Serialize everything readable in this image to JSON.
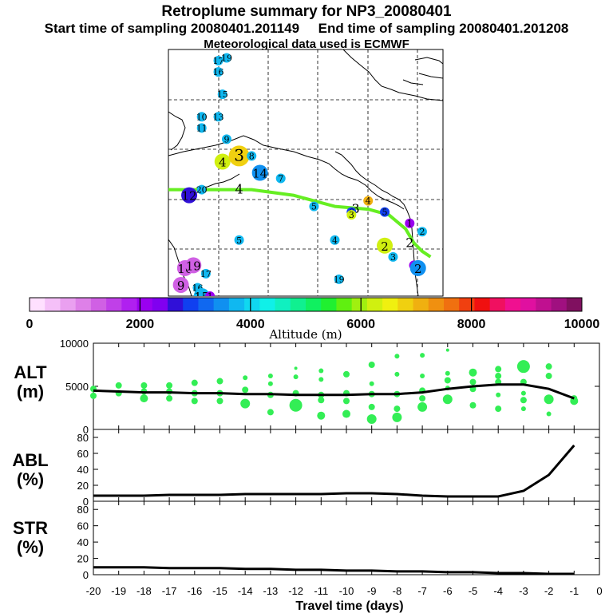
{
  "title": {
    "line1": "Retroplume summary for NP3_20080401",
    "line2": "Start time of sampling 20080401.201149     End time of sampling 20080401.201208",
    "line3": "Meteorological data used is ECMWF"
  },
  "colorbar": {
    "label": "Altitude (m)",
    "ticks": [
      "0",
      "2000",
      "4000",
      "6000",
      "8000",
      "10000"
    ],
    "colors": [
      "#ffe0ff",
      "#f5c0f8",
      "#eaa0f0",
      "#de80e8",
      "#d060e4",
      "#c040e8",
      "#b020f0",
      "#9a00f0",
      "#8000f0",
      "#3010d8",
      "#1040f0",
      "#1068f0",
      "#1090f0",
      "#10b8f0",
      "#10d8f0",
      "#10f0e8",
      "#10f0c0",
      "#10f090",
      "#10f060",
      "#20f030",
      "#60f010",
      "#a0f010",
      "#d0f010",
      "#f0f010",
      "#f0d010",
      "#f0b010",
      "#f09010",
      "#f07010",
      "#f04010",
      "#f01010",
      "#f01060",
      "#f01090",
      "#e010a0",
      "#c01090",
      "#a01080",
      "#801060"
    ]
  },
  "map": {
    "points": [
      {
        "label": "17",
        "alt": 3800,
        "size": "s",
        "lon": -168,
        "lat": 80
      },
      {
        "label": "19",
        "alt": 3800,
        "size": "s",
        "lon": -166,
        "lat": 80.5
      },
      {
        "label": "16",
        "alt": 3800,
        "size": "s",
        "lon": -168,
        "lat": 78
      },
      {
        "label": "15",
        "alt": 3800,
        "size": "s",
        "lon": -167,
        "lat": 74
      },
      {
        "label": "10",
        "alt": 3800,
        "size": "s",
        "lon": -172,
        "lat": 70
      },
      {
        "label": "13",
        "alt": 3800,
        "size": "s",
        "lon": -168,
        "lat": 70
      },
      {
        "label": "11",
        "alt": 3800,
        "size": "s",
        "lon": -172,
        "lat": 68
      },
      {
        "label": "9",
        "alt": 3800,
        "size": "s",
        "lon": -166,
        "lat": 66
      },
      {
        "label": "4",
        "alt": 6200,
        "size": "m",
        "lon": -167,
        "lat": 62
      },
      {
        "label": "3",
        "alt": 6800,
        "size": "l",
        "lon": -163,
        "lat": 63
      },
      {
        "label": "8",
        "alt": 3800,
        "size": "s",
        "lon": -160,
        "lat": 63
      },
      {
        "label": "14",
        "alt": 3600,
        "size": "m",
        "lon": -158,
        "lat": 60
      },
      {
        "label": "7",
        "alt": 3800,
        "size": "s",
        "lon": -153,
        "lat": 59
      },
      {
        "label": "12",
        "alt": 2700,
        "size": "m",
        "lon": -175,
        "lat": 56
      },
      {
        "label": "20",
        "alt": 3800,
        "size": "s",
        "lon": -172,
        "lat": 57
      },
      {
        "label": "5",
        "alt": 3800,
        "size": "s",
        "lon": -145,
        "lat": 54
      },
      {
        "label": "6",
        "alt": 2800,
        "size": "s",
        "lon": -136,
        "lat": 53
      },
      {
        "label": "3",
        "alt": 6200,
        "size": "s",
        "lon": -136,
        "lat": 52.5
      },
      {
        "label": "5",
        "alt": 2800,
        "size": "s",
        "lon": -128,
        "lat": 53
      },
      {
        "label": "4",
        "alt": 7000,
        "size": "s",
        "lon": -132,
        "lat": 55
      },
      {
        "label": "1",
        "alt": 2000,
        "size": "s",
        "lon": -122,
        "lat": 51
      },
      {
        "label": "2",
        "alt": 3800,
        "size": "s",
        "lon": -119,
        "lat": 49.5
      },
      {
        "label": "5",
        "alt": 3800,
        "size": "s",
        "lon": -163,
        "lat": 48
      },
      {
        "label": "4",
        "alt": 3800,
        "size": "s",
        "lon": -140,
        "lat": 48
      },
      {
        "label": "2",
        "alt": 6200,
        "size": "m",
        "lon": -128,
        "lat": 47
      },
      {
        "label": "3",
        "alt": 3800,
        "size": "s",
        "lon": -126,
        "lat": 45
      },
      {
        "label": "1",
        "alt": 2000,
        "size": "s",
        "lon": -121,
        "lat": 43.5
      },
      {
        "label": "2",
        "alt": 3600,
        "size": "m",
        "lon": -120,
        "lat": 43
      },
      {
        "label": "10",
        "alt": 1200,
        "size": "m",
        "lon": -176,
        "lat": 43
      },
      {
        "label": "19",
        "alt": 1200,
        "size": "m",
        "lon": -174,
        "lat": 43.5
      },
      {
        "label": "17",
        "alt": 3800,
        "size": "s",
        "lon": -171,
        "lat": 42
      },
      {
        "label": "9",
        "alt": 1200,
        "size": "m",
        "lon": -177,
        "lat": 40
      },
      {
        "label": "16",
        "alt": 3800,
        "size": "s",
        "lon": -173,
        "lat": 39.5
      },
      {
        "label": "15",
        "alt": 3800,
        "size": "m",
        "lon": -172,
        "lat": 38
      },
      {
        "label": "1",
        "alt": 2000,
        "size": "s",
        "lon": -170,
        "lat": 38
      },
      {
        "label": "19",
        "alt": 3800,
        "size": "s",
        "lon": -139,
        "lat": 41
      }
    ],
    "track_labels": [
      {
        "label": "4",
        "lon": -163,
        "lat": 57
      },
      {
        "label": "3",
        "lon": -135,
        "lat": 53.5
      },
      {
        "label": "2",
        "lon": -122,
        "lat": 47.5
      }
    ],
    "track": [
      [
        -180,
        57
      ],
      [
        -170,
        57
      ],
      [
        -160,
        57
      ],
      [
        -150,
        56
      ],
      [
        -140,
        54
      ],
      [
        -132,
        53.5
      ],
      [
        -127,
        52.5
      ],
      [
        -123,
        50
      ],
      [
        -121,
        47.5
      ],
      [
        -119,
        46
      ],
      [
        -117,
        45
      ]
    ]
  },
  "chart_data": [
    {
      "type": "scatter",
      "ylabel": "ALT\n(m)",
      "ylim": [
        0,
        10000
      ],
      "yticks": [
        "10000",
        "5000",
        "0"
      ],
      "xlim": [
        -20,
        0
      ],
      "mean_line": [
        [
          -20,
          4500
        ],
        [
          -19,
          4400
        ],
        [
          -18,
          4300
        ],
        [
          -17,
          4300
        ],
        [
          -16,
          4200
        ],
        [
          -15,
          4200
        ],
        [
          -14,
          4100
        ],
        [
          -13,
          4100
        ],
        [
          -12,
          4000
        ],
        [
          -11,
          4000
        ],
        [
          -10,
          4000
        ],
        [
          -9,
          4100
        ],
        [
          -8,
          4100
        ],
        [
          -7,
          4300
        ],
        [
          -6,
          4700
        ],
        [
          -5,
          5000
        ],
        [
          -4,
          5200
        ],
        [
          -3,
          5200
        ],
        [
          -2,
          4700
        ],
        [
          -1,
          3600
        ]
      ],
      "points": [
        [
          -20,
          3900,
          3
        ],
        [
          -20,
          4700,
          3
        ],
        [
          -19,
          4200,
          3
        ],
        [
          -19,
          5100,
          3
        ],
        [
          -18,
          3600,
          4
        ],
        [
          -18,
          4400,
          3
        ],
        [
          -18,
          5100,
          3
        ],
        [
          -17,
          3600,
          3
        ],
        [
          -17,
          4400,
          3
        ],
        [
          -17,
          5100,
          3
        ],
        [
          -16,
          3300,
          3
        ],
        [
          -16,
          4200,
          3
        ],
        [
          -16,
          5400,
          3
        ],
        [
          -15,
          3300,
          3
        ],
        [
          -15,
          4200,
          3
        ],
        [
          -15,
          5600,
          3
        ],
        [
          -14,
          3000,
          5
        ],
        [
          -14,
          4600,
          3
        ],
        [
          -14,
          6000,
          2
        ],
        [
          -13,
          2000,
          3
        ],
        [
          -13,
          4000,
          3
        ],
        [
          -13,
          5300,
          2
        ],
        [
          -13,
          6200,
          2
        ],
        [
          -12,
          2800,
          7
        ],
        [
          -12,
          4200,
          3
        ],
        [
          -12,
          6100,
          2
        ],
        [
          -12,
          7100,
          1
        ],
        [
          -11,
          1600,
          4
        ],
        [
          -11,
          3400,
          3
        ],
        [
          -11,
          4000,
          3
        ],
        [
          -11,
          5800,
          2
        ],
        [
          -11,
          6800,
          2
        ],
        [
          -10,
          1800,
          4
        ],
        [
          -10,
          3300,
          3
        ],
        [
          -10,
          4200,
          3
        ],
        [
          -10,
          6400,
          3
        ],
        [
          -9,
          1200,
          5
        ],
        [
          -9,
          2600,
          3
        ],
        [
          -9,
          4100,
          3
        ],
        [
          -9,
          5300,
          2
        ],
        [
          -9,
          7500,
          3
        ],
        [
          -8,
          1400,
          5
        ],
        [
          -8,
          2400,
          3
        ],
        [
          -8,
          4100,
          3
        ],
        [
          -8,
          6400,
          2
        ],
        [
          -8,
          8500,
          2
        ],
        [
          -7,
          2600,
          5
        ],
        [
          -7,
          3600,
          3
        ],
        [
          -7,
          4500,
          3
        ],
        [
          -7,
          6200,
          2
        ],
        [
          -7,
          8600,
          2
        ],
        [
          -6,
          3500,
          5
        ],
        [
          -6,
          4800,
          2
        ],
        [
          -6,
          5700,
          3
        ],
        [
          -6,
          6500,
          2
        ],
        [
          -6,
          9200,
          1
        ],
        [
          -5,
          2800,
          3
        ],
        [
          -5,
          4700,
          3
        ],
        [
          -5,
          5500,
          3
        ],
        [
          -5,
          6600,
          4
        ],
        [
          -4,
          2400,
          3
        ],
        [
          -4,
          4000,
          2
        ],
        [
          -4,
          5500,
          3
        ],
        [
          -4,
          6200,
          3
        ],
        [
          -4,
          7000,
          3
        ],
        [
          -3,
          2400,
          2
        ],
        [
          -3,
          3400,
          3
        ],
        [
          -3,
          4200,
          2
        ],
        [
          -3,
          5500,
          3
        ],
        [
          -3,
          7300,
          7
        ],
        [
          -2,
          1800,
          2
        ],
        [
          -2,
          3500,
          5
        ],
        [
          -2,
          6200,
          3
        ],
        [
          -2,
          7300,
          3
        ],
        [
          -1,
          3300,
          4
        ],
        [
          -1,
          3600,
          3
        ]
      ]
    },
    {
      "type": "line",
      "ylabel": "ABL\n(%)",
      "ylim": [
        0,
        90
      ],
      "yticks": [
        "80",
        "60",
        "40",
        "20",
        "0"
      ],
      "x": [
        -20,
        -19,
        -18,
        -17,
        -16,
        -15,
        -14,
        -13,
        -12,
        -11,
        -10,
        -9,
        -8,
        -7,
        -6,
        -5,
        -4,
        -3,
        -2,
        -1
      ],
      "values": [
        7,
        7,
        7,
        8,
        8,
        8,
        9,
        9,
        9,
        9,
        10,
        10,
        9,
        7,
        6,
        6,
        6,
        13,
        33,
        70
      ]
    },
    {
      "type": "line",
      "ylabel": "STR\n(%)",
      "ylim": [
        0,
        90
      ],
      "yticks": [
        "80",
        "60",
        "40",
        "20",
        "0"
      ],
      "x": [
        -20,
        -19,
        -18,
        -17,
        -16,
        -15,
        -14,
        -13,
        -12,
        -11,
        -10,
        -9,
        -8,
        -7,
        -6,
        -5,
        -4,
        -3,
        -2,
        -1
      ],
      "values": [
        9,
        9,
        9,
        8,
        8,
        8,
        7,
        7,
        6,
        6,
        5,
        5,
        4,
        4,
        3,
        3,
        2,
        2,
        1,
        1
      ],
      "xlabel": "Travel time (days)",
      "xticks": [
        "-20",
        "-19",
        "-18",
        "-17",
        "-16",
        "-15",
        "-14",
        "-13",
        "-12",
        "-11",
        "-10",
        "-9",
        "-8",
        "-7",
        "-6",
        "-5",
        "-4",
        "-3",
        "-2",
        "-1",
        "0"
      ]
    }
  ]
}
